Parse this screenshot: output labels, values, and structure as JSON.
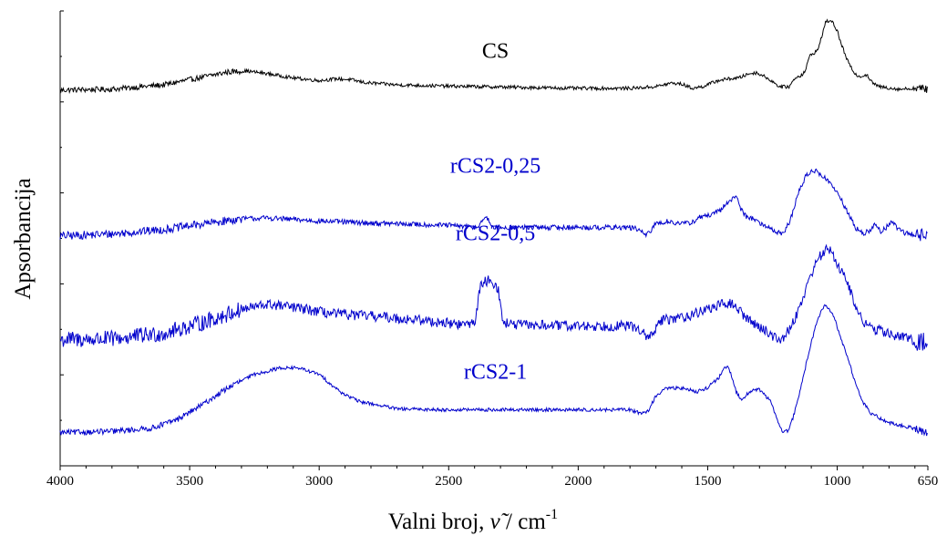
{
  "chart_data": {
    "type": "line",
    "title": "",
    "xlabel_main": "Valni broj, ",
    "xlabel_symbol": "ν̃",
    "xlabel_unit": " / cm",
    "xlabel_exponent": "-1",
    "ylabel": "Apsorbancija",
    "xlim": [
      4000,
      650
    ],
    "x_reversed": true,
    "y_ticks_labeled": false,
    "grid": false,
    "x_ticks": [
      {
        "value": 4000,
        "label": "4000"
      },
      {
        "value": 3500,
        "label": "3500"
      },
      {
        "value": 3000,
        "label": "3000"
      },
      {
        "value": 2500,
        "label": "2500"
      },
      {
        "value": 2000,
        "label": "2000"
      },
      {
        "value": 1500,
        "label": "1500"
      },
      {
        "value": 1000,
        "label": "1000"
      },
      {
        "value": 650,
        "label": "650"
      }
    ],
    "series": [
      {
        "name": "CS",
        "color": "#000000",
        "label_wavenumber": 2330,
        "baseline": 0.84,
        "noise": 0.004,
        "points": [
          [
            4000,
            0.838
          ],
          [
            3800,
            0.84
          ],
          [
            3600,
            0.85
          ],
          [
            3450,
            0.868
          ],
          [
            3350,
            0.88
          ],
          [
            3280,
            0.882
          ],
          [
            3200,
            0.876
          ],
          [
            3100,
            0.866
          ],
          [
            3000,
            0.86
          ],
          [
            2930,
            0.864
          ],
          [
            2880,
            0.862
          ],
          [
            2820,
            0.855
          ],
          [
            2700,
            0.85
          ],
          [
            2500,
            0.847
          ],
          [
            2300,
            0.845
          ],
          [
            2000,
            0.842
          ],
          [
            1800,
            0.842
          ],
          [
            1700,
            0.846
          ],
          [
            1640,
            0.854
          ],
          [
            1600,
            0.852
          ],
          [
            1560,
            0.842
          ],
          [
            1520,
            0.846
          ],
          [
            1460,
            0.86
          ],
          [
            1420,
            0.864
          ],
          [
            1380,
            0.866
          ],
          [
            1340,
            0.876
          ],
          [
            1310,
            0.878
          ],
          [
            1270,
            0.866
          ],
          [
            1220,
            0.845
          ],
          [
            1185,
            0.846
          ],
          [
            1160,
            0.868
          ],
          [
            1145,
            0.87
          ],
          [
            1125,
            0.88
          ],
          [
            1105,
            0.918
          ],
          [
            1090,
            0.924
          ],
          [
            1075,
            0.93
          ],
          [
            1060,
            0.962
          ],
          [
            1045,
            0.994
          ],
          [
            1030,
            1.0
          ],
          [
            1015,
            0.992
          ],
          [
            1000,
            0.975
          ],
          [
            985,
            0.946
          ],
          [
            965,
            0.912
          ],
          [
            945,
            0.888
          ],
          [
            925,
            0.872
          ],
          [
            905,
            0.87
          ],
          [
            885,
            0.874
          ],
          [
            870,
            0.858
          ],
          [
            840,
            0.846
          ],
          [
            800,
            0.843
          ],
          [
            760,
            0.84
          ],
          [
            700,
            0.842
          ],
          [
            650,
            0.84
          ]
        ]
      },
      {
        "name": "rCS2-0,25",
        "color": "#0000cc",
        "label_wavenumber": 2330,
        "baseline": 0.5,
        "noise": 0.006,
        "points": [
          [
            4000,
            0.5
          ],
          [
            3800,
            0.505
          ],
          [
            3600,
            0.515
          ],
          [
            3450,
            0.528
          ],
          [
            3300,
            0.54
          ],
          [
            3200,
            0.542
          ],
          [
            3000,
            0.535
          ],
          [
            2800,
            0.53
          ],
          [
            2500,
            0.525
          ],
          [
            2390,
            0.52
          ],
          [
            2370,
            0.538
          ],
          [
            2350,
            0.54
          ],
          [
            2330,
            0.52
          ],
          [
            2000,
            0.52
          ],
          [
            1800,
            0.52
          ],
          [
            1760,
            0.514
          ],
          [
            1740,
            0.5
          ],
          [
            1720,
            0.512
          ],
          [
            1700,
            0.53
          ],
          [
            1650,
            0.534
          ],
          [
            1600,
            0.528
          ],
          [
            1560,
            0.532
          ],
          [
            1530,
            0.544
          ],
          [
            1480,
            0.55
          ],
          [
            1450,
            0.56
          ],
          [
            1420,
            0.58
          ],
          [
            1400,
            0.59
          ],
          [
            1385,
            0.588
          ],
          [
            1370,
            0.56
          ],
          [
            1350,
            0.545
          ],
          [
            1320,
            0.54
          ],
          [
            1290,
            0.526
          ],
          [
            1260,
            0.52
          ],
          [
            1230,
            0.508
          ],
          [
            1210,
            0.505
          ],
          [
            1180,
            0.538
          ],
          [
            1150,
            0.6
          ],
          [
            1120,
            0.64
          ],
          [
            1095,
            0.652
          ],
          [
            1075,
            0.648
          ],
          [
            1050,
            0.636
          ],
          [
            1020,
            0.618
          ],
          [
            990,
            0.59
          ],
          [
            960,
            0.555
          ],
          [
            930,
            0.52
          ],
          [
            900,
            0.505
          ],
          [
            870,
            0.515
          ],
          [
            850,
            0.528
          ],
          [
            830,
            0.51
          ],
          [
            810,
            0.52
          ],
          [
            790,
            0.534
          ],
          [
            770,
            0.52
          ],
          [
            740,
            0.508
          ],
          [
            700,
            0.503
          ],
          [
            650,
            0.503
          ]
        ]
      },
      {
        "name": "rCS2-0,5",
        "color": "#0000cc",
        "label_wavenumber": 2330,
        "baseline": 0.26,
        "noise": 0.012,
        "points": [
          [
            4000,
            0.26
          ],
          [
            3800,
            0.262
          ],
          [
            3600,
            0.275
          ],
          [
            3450,
            0.3
          ],
          [
            3300,
            0.33
          ],
          [
            3200,
            0.342
          ],
          [
            3100,
            0.335
          ],
          [
            2950,
            0.32
          ],
          [
            2800,
            0.315
          ],
          [
            2600,
            0.305
          ],
          [
            2450,
            0.295
          ],
          [
            2400,
            0.3
          ],
          [
            2375,
            0.39
          ],
          [
            2340,
            0.4
          ],
          [
            2310,
            0.38
          ],
          [
            2290,
            0.3
          ],
          [
            2250,
            0.295
          ],
          [
            2000,
            0.292
          ],
          [
            1800,
            0.292
          ],
          [
            1760,
            0.284
          ],
          [
            1730,
            0.26
          ],
          [
            1710,
            0.278
          ],
          [
            1680,
            0.305
          ],
          [
            1620,
            0.31
          ],
          [
            1560,
            0.318
          ],
          [
            1500,
            0.332
          ],
          [
            1450,
            0.34
          ],
          [
            1420,
            0.346
          ],
          [
            1390,
            0.336
          ],
          [
            1350,
            0.31
          ],
          [
            1300,
            0.29
          ],
          [
            1260,
            0.275
          ],
          [
            1230,
            0.26
          ],
          [
            1200,
            0.27
          ],
          [
            1170,
            0.3
          ],
          [
            1140,
            0.345
          ],
          [
            1110,
            0.395
          ],
          [
            1090,
            0.43
          ],
          [
            1070,
            0.45
          ],
          [
            1050,
            0.465
          ],
          [
            1035,
            0.47
          ],
          [
            1020,
            0.46
          ],
          [
            1000,
            0.438
          ],
          [
            980,
            0.415
          ],
          [
            950,
            0.375
          ],
          [
            920,
            0.32
          ],
          [
            880,
            0.29
          ],
          [
            840,
            0.282
          ],
          [
            780,
            0.27
          ],
          [
            720,
            0.262
          ],
          [
            700,
            0.258
          ],
          [
            660,
            0.25
          ],
          [
            650,
            0.255
          ]
        ]
      },
      {
        "name": "rCS2-1",
        "color": "#0000cc",
        "label_wavenumber": 2330,
        "baseline": 0.045,
        "noise": 0.004,
        "points": [
          [
            4000,
            0.045
          ],
          [
            3800,
            0.048
          ],
          [
            3650,
            0.055
          ],
          [
            3550,
            0.075
          ],
          [
            3450,
            0.11
          ],
          [
            3350,
            0.15
          ],
          [
            3250,
            0.18
          ],
          [
            3150,
            0.195
          ],
          [
            3080,
            0.195
          ],
          [
            3000,
            0.18
          ],
          [
            2920,
            0.14
          ],
          [
            2850,
            0.118
          ],
          [
            2780,
            0.11
          ],
          [
            2700,
            0.1
          ],
          [
            2500,
            0.098
          ],
          [
            2300,
            0.098
          ],
          [
            2000,
            0.098
          ],
          [
            1800,
            0.098
          ],
          [
            1760,
            0.09
          ],
          [
            1730,
            0.095
          ],
          [
            1700,
            0.13
          ],
          [
            1660,
            0.148
          ],
          [
            1600,
            0.148
          ],
          [
            1540,
            0.14
          ],
          [
            1500,
            0.15
          ],
          [
            1460,
            0.17
          ],
          [
            1440,
            0.19
          ],
          [
            1425,
            0.198
          ],
          [
            1410,
            0.18
          ],
          [
            1390,
            0.14
          ],
          [
            1370,
            0.12
          ],
          [
            1340,
            0.14
          ],
          [
            1300,
            0.145
          ],
          [
            1260,
            0.12
          ],
          [
            1230,
            0.075
          ],
          [
            1210,
            0.045
          ],
          [
            1190,
            0.05
          ],
          [
            1170,
            0.08
          ],
          [
            1140,
            0.15
          ],
          [
            1110,
            0.23
          ],
          [
            1080,
            0.3
          ],
          [
            1060,
            0.33
          ],
          [
            1045,
            0.34
          ],
          [
            1030,
            0.33
          ],
          [
            1010,
            0.31
          ],
          [
            990,
            0.27
          ],
          [
            960,
            0.22
          ],
          [
            930,
            0.16
          ],
          [
            900,
            0.115
          ],
          [
            870,
            0.09
          ],
          [
            840,
            0.08
          ],
          [
            800,
            0.068
          ],
          [
            760,
            0.062
          ],
          [
            700,
            0.055
          ],
          [
            660,
            0.045
          ],
          [
            650,
            0.05
          ]
        ]
      }
    ]
  }
}
